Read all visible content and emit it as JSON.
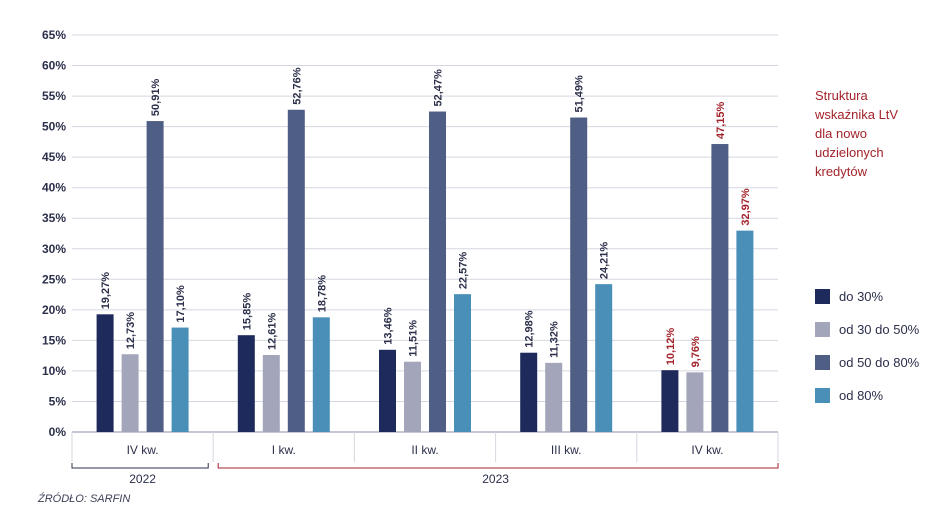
{
  "chart_data": {
    "type": "bar",
    "title": "Struktura wskaźnika LtV dla nowo udzielonych kredytów",
    "title_lines": [
      "Struktura",
      "wskaźnika LtV",
      "dla nowo",
      "udzielonych",
      "kredytów"
    ],
    "categories": [
      "IV kw.",
      "I kw.",
      "II kw.",
      "III kw.",
      "IV kw."
    ],
    "groups": [
      {
        "label": "2022",
        "span": [
          0,
          0
        ]
      },
      {
        "label": "2023",
        "span": [
          1,
          4
        ]
      }
    ],
    "series": [
      {
        "name": "do 30%",
        "color": "#1f2a5c",
        "values": [
          19.27,
          15.85,
          13.46,
          12.98,
          10.12
        ],
        "labels": [
          "19,27%",
          "15,85%",
          "13,46%",
          "12,98%",
          "10,12%"
        ]
      },
      {
        "name": "od 30 do 50%",
        "color": "#a3a6ba",
        "values": [
          12.73,
          12.61,
          11.51,
          11.32,
          9.76
        ],
        "labels": [
          "12,73%",
          "12,61%",
          "11,51%",
          "11,32%",
          "9,76%"
        ]
      },
      {
        "name": "od 50 do 80%",
        "color": "#4f5e85",
        "values": [
          50.91,
          52.76,
          52.47,
          51.49,
          47.15
        ],
        "labels": [
          "50,91%",
          "52,76%",
          "52,47%",
          "51,49%",
          "47,15%"
        ]
      },
      {
        "name": "od 80%",
        "color": "#4a8fb8",
        "values": [
          17.1,
          18.78,
          22.57,
          24.21,
          32.97
        ],
        "labels": [
          "17,10%",
          "18,78%",
          "22,57%",
          "24,21%",
          "32,97%"
        ]
      }
    ],
    "ylim": [
      0,
      65
    ],
    "yticks": [
      "0%",
      "5%",
      "10%",
      "15%",
      "20%",
      "25%",
      "30%",
      "35%",
      "40%",
      "45%",
      "50%",
      "55%",
      "60%",
      "65%"
    ],
    "grid": true,
    "legend_position": "right",
    "colors": {
      "text": "#2b2f4a",
      "highlight": "#a3232b",
      "grid": "#d5d7e0",
      "axis": "#8a8ea3"
    }
  },
  "source": "ŹRÓDŁO: SARFIN"
}
